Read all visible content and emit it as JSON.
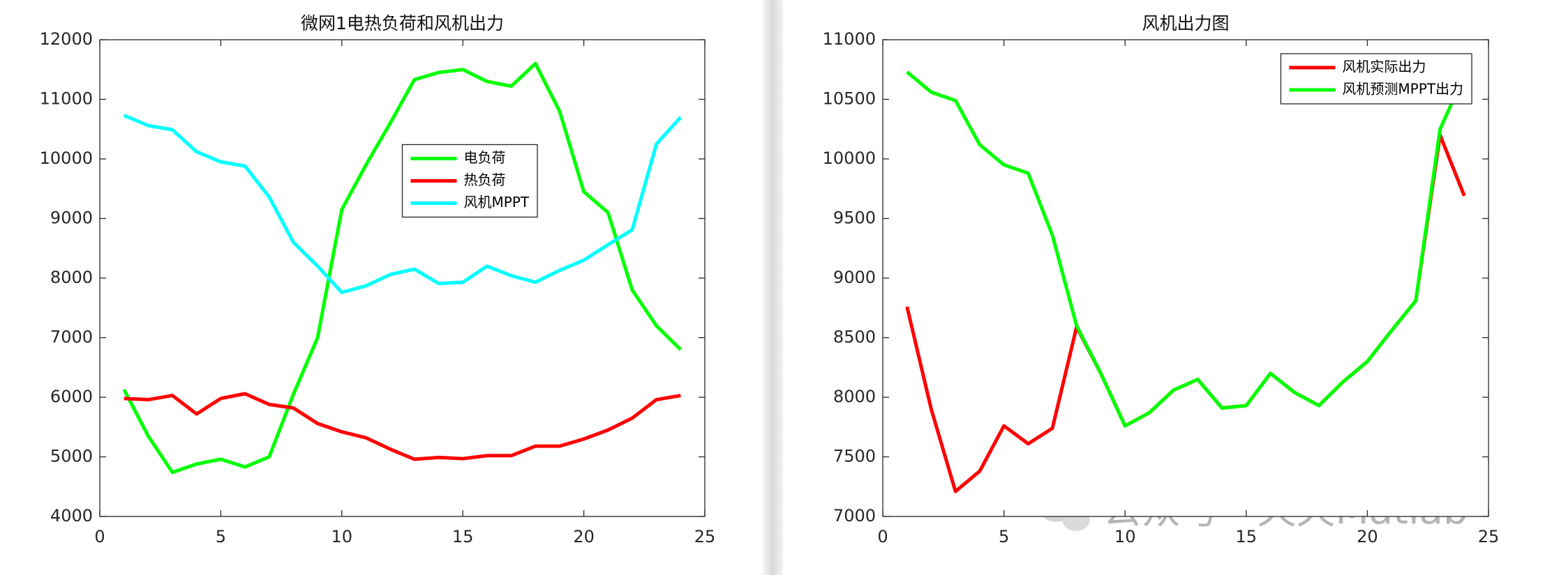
{
  "chart_data": [
    {
      "type": "line",
      "title": "微网1电热负荷和风机出力",
      "x": [
        1,
        2,
        3,
        4,
        5,
        6,
        7,
        8,
        9,
        10,
        11,
        12,
        13,
        14,
        15,
        16,
        17,
        18,
        19,
        20,
        21,
        22,
        23,
        24
      ],
      "xlim": [
        0,
        25
      ],
      "xticks": [
        0,
        5,
        10,
        15,
        20,
        25
      ],
      "ylim": [
        4000,
        12000
      ],
      "yticks": [
        4000,
        5000,
        6000,
        7000,
        8000,
        9000,
        10000,
        11000,
        12000
      ],
      "legend": "center",
      "series": [
        {
          "name": "电负荷",
          "color": "#00ff00",
          "values": [
            6130,
            5350,
            4740,
            4880,
            4960,
            4830,
            5000,
            6050,
            7000,
            9150,
            9900,
            10600,
            11330,
            11450,
            11500,
            11300,
            11220,
            11600,
            10800,
            9450,
            9100,
            7800,
            7200,
            6800
          ]
        },
        {
          "name": "热负荷",
          "color": "#ff0000",
          "values": [
            5980,
            5960,
            6030,
            5720,
            5980,
            6060,
            5880,
            5820,
            5560,
            5420,
            5320,
            5130,
            4960,
            4990,
            4970,
            5020,
            5020,
            5180,
            5180,
            5300,
            5450,
            5650,
            5960,
            6030
          ]
        },
        {
          "name": "风机MPPT",
          "color": "#00ffff",
          "values": [
            10730,
            10560,
            10490,
            10120,
            9950,
            9880,
            9360,
            8600,
            8200,
            7760,
            7870,
            8060,
            8150,
            7910,
            7930,
            8200,
            8040,
            7930,
            8130,
            8300,
            8560,
            8810,
            10250,
            10700
          ]
        }
      ]
    },
    {
      "type": "line",
      "title": "风机出力图",
      "x": [
        1,
        2,
        3,
        4,
        5,
        6,
        7,
        8,
        9,
        10,
        11,
        12,
        13,
        14,
        15,
        16,
        17,
        18,
        19,
        20,
        21,
        22,
        23,
        24
      ],
      "xlim": [
        0,
        25
      ],
      "xticks": [
        0,
        5,
        10,
        15,
        20,
        25
      ],
      "ylim": [
        7000,
        11000
      ],
      "yticks": [
        7000,
        7500,
        8000,
        8500,
        9000,
        9500,
        10000,
        10500,
        11000
      ],
      "legend": "northeast",
      "series": [
        {
          "name": "风机实际出力",
          "color": "#ff0000",
          "values": [
            8760,
            7900,
            7210,
            7380,
            7760,
            7610,
            7740,
            8590,
            8200,
            7760,
            7870,
            8060,
            8150,
            7910,
            7930,
            8200,
            8040,
            7930,
            8130,
            8300,
            8560,
            8810,
            10200,
            9690
          ]
        },
        {
          "name": "风机预测MPPT出力",
          "color": "#00ff00",
          "values": [
            10730,
            10560,
            10490,
            10120,
            9950,
            9880,
            9360,
            8600,
            8200,
            7760,
            7870,
            8060,
            8150,
            7910,
            7930,
            8200,
            8040,
            7930,
            8130,
            8300,
            8560,
            8810,
            10250,
            10700
          ]
        }
      ]
    }
  ],
  "watermark": "公众号 · 天天Matlab"
}
